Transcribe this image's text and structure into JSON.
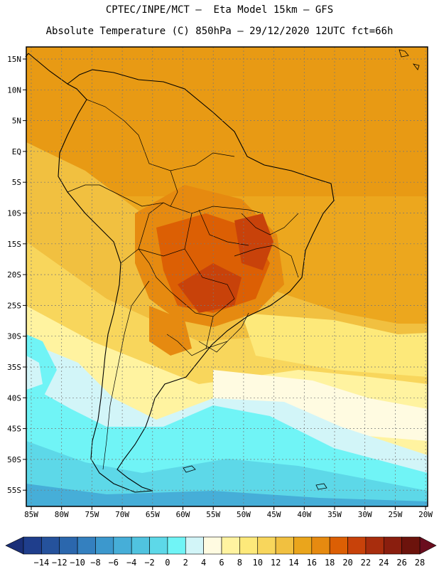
{
  "header": {
    "line1": "CPTEC/INPE/MCT –  Eta Model 15km – GFS",
    "line2": "Absolute Temperature (C) 850hPa – 29/12/2020 12UTC fct=66h"
  },
  "axes": {
    "lat_labels": [
      "15N",
      "10N",
      "5N",
      "EQ",
      "5S",
      "10S",
      "15S",
      "20S",
      "25S",
      "30S",
      "35S",
      "40S",
      "45S",
      "50S",
      "55S"
    ],
    "lon_labels": [
      "85W",
      "80W",
      "75W",
      "70W",
      "65W",
      "60W",
      "55W",
      "50W",
      "45W",
      "40W",
      "35W",
      "30W",
      "25W",
      "20W"
    ]
  },
  "colorbar": {
    "colors": [
      "#1f3e8c",
      "#25529c",
      "#2b67ad",
      "#3480bf",
      "#3c98cd",
      "#46aed8",
      "#50c3df",
      "#5dd8e8",
      "#70f4f6",
      "#d2f5f8",
      "#fffbe1",
      "#fff3a0",
      "#fde97a",
      "#f8d65c",
      "#f1c040",
      "#eaa51c",
      "#e68a10",
      "#dc5f04",
      "#c8420a",
      "#a82d0d",
      "#8a1e0e",
      "#6c130c"
    ],
    "labels": [
      "−14",
      "−12",
      "−10",
      "−8",
      "−6",
      "−4",
      "−2",
      "0",
      "2",
      "4",
      "6",
      "8",
      "10",
      "12",
      "14",
      "16",
      "18",
      "20",
      "22",
      "24",
      "26",
      "28"
    ],
    "left_arrow_color": "#1a2f78",
    "right_arrow_color": "#6a0d1e"
  }
}
